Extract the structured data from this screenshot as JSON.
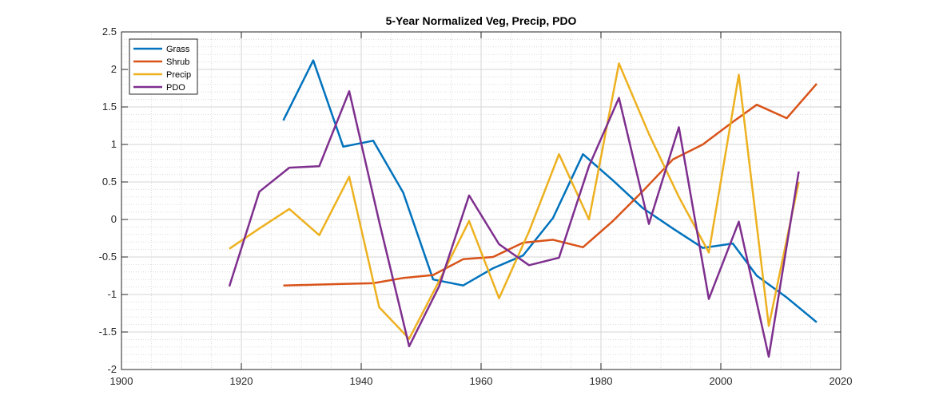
{
  "chart_data": {
    "type": "line",
    "title": "5-Year Normalized Veg, Precip, PDO",
    "xlabel": "",
    "ylabel": "",
    "xlim": [
      1900,
      2020
    ],
    "ylim": [
      -2,
      2.5
    ],
    "xticks": [
      1900,
      1920,
      1940,
      1960,
      1980,
      2000,
      2020
    ],
    "yticks": [
      -2,
      -1.5,
      -1,
      -0.5,
      0,
      0.5,
      1,
      1.5,
      2,
      2.5
    ],
    "xtick_labels": [
      "1900",
      "1920",
      "1940",
      "1960",
      "1980",
      "2000",
      "2020"
    ],
    "ytick_labels": [
      "-2",
      "-1.5",
      "-1",
      "-0.5",
      "0",
      "0.5",
      "1",
      "1.5",
      "2",
      "2.5"
    ],
    "grid": "major and minor",
    "legend_position": "top-left",
    "series": [
      {
        "name": "Grass",
        "color": "#0072BD",
        "x": [
          1927,
          1932,
          1937,
          1942,
          1947,
          1952,
          1957,
          1962,
          1967,
          1972,
          1977,
          1982,
          1987,
          1992,
          1997,
          2002,
          2006,
          2011,
          2016
        ],
        "y": [
          1.32,
          2.12,
          0.97,
          1.05,
          0.36,
          -0.8,
          -0.88,
          -0.65,
          -0.48,
          0.02,
          0.87,
          0.52,
          0.15,
          -0.12,
          -0.38,
          -0.32,
          -0.75,
          -1.04,
          -1.37
        ]
      },
      {
        "name": "Shrub",
        "color": "#D95319",
        "x": [
          1927,
          1932,
          1937,
          1942,
          1947,
          1952,
          1957,
          1962,
          1967,
          1972,
          1977,
          1982,
          1987,
          1992,
          1997,
          2002,
          2006,
          2011,
          2016
        ],
        "y": [
          -0.88,
          -0.87,
          -0.86,
          -0.85,
          -0.78,
          -0.74,
          -0.53,
          -0.5,
          -0.31,
          -0.27,
          -0.37,
          -0.02,
          0.38,
          0.8,
          1.0,
          1.3,
          1.53,
          1.35,
          1.81
        ]
      },
      {
        "name": "Precip",
        "color": "#EDB120",
        "x": [
          1918,
          1923,
          1928,
          1933,
          1938,
          1943,
          1948,
          1953,
          1958,
          1963,
          1968,
          1973,
          1978,
          1983,
          1988,
          1993,
          1998,
          2003,
          2008,
          2013
        ],
        "y": [
          -0.39,
          -0.12,
          0.14,
          -0.21,
          0.57,
          -1.17,
          -1.59,
          -0.82,
          -0.02,
          -1.05,
          -0.16,
          0.87,
          0.0,
          2.08,
          1.14,
          0.3,
          -0.44,
          1.93,
          -1.42,
          0.5
        ]
      },
      {
        "name": "PDO",
        "color": "#7E2F8E",
        "x": [
          1918,
          1923,
          1928,
          1933,
          1938,
          1943,
          1948,
          1953,
          1958,
          1963,
          1968,
          1973,
          1978,
          1983,
          1988,
          1993,
          1998,
          2003,
          2008,
          2013
        ],
        "y": [
          -0.89,
          0.37,
          0.69,
          0.71,
          1.71,
          -0.03,
          -1.69,
          -0.89,
          0.32,
          -0.33,
          -0.61,
          -0.51,
          0.71,
          1.62,
          -0.06,
          1.23,
          -1.06,
          -0.03,
          -1.83,
          0.64
        ]
      }
    ]
  }
}
